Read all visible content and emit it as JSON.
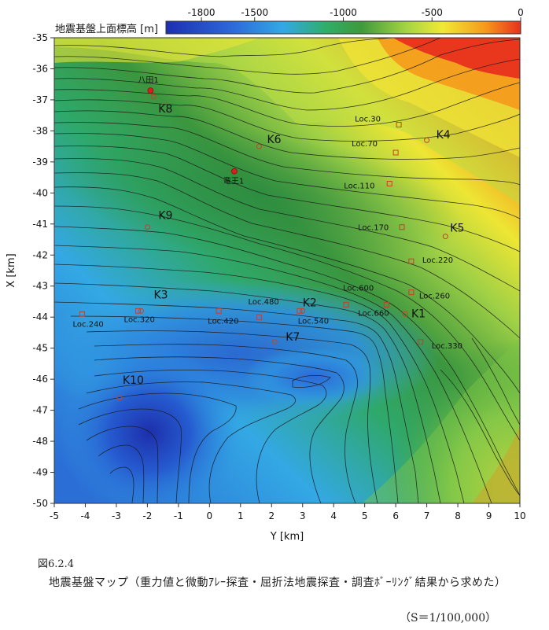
{
  "colorbar": {
    "title": "地震基盤上面標高 [m]",
    "ticks": [
      "-1800",
      "-1500",
      "-1000",
      "-500",
      "0"
    ],
    "colors": [
      "#2a3fb8",
      "#3b7fe0",
      "#3fb4e8",
      "#2faa5a",
      "#3a8a3a",
      "#b6d84a",
      "#f1ec35",
      "#f6a31c",
      "#ec3c1f"
    ]
  },
  "axes": {
    "x_label": "Y [km]",
    "y_label": "X [km]",
    "x_ticks": [
      "-5",
      "-4",
      "-3",
      "-2",
      "-1",
      "0",
      "1",
      "2",
      "3",
      "4",
      "5",
      "6",
      "7",
      "8",
      "9",
      "10"
    ],
    "y_ticks": [
      "-35",
      "-36",
      "-37",
      "-38",
      "-39",
      "-40",
      "-41",
      "-42",
      "-43",
      "-44",
      "-45",
      "-46",
      "-47",
      "-48",
      "-49",
      "-50"
    ]
  },
  "sites": [
    {
      "label": "K1",
      "y_km": 6.3,
      "x_km": -43.9,
      "kind": "array"
    },
    {
      "label": "K2",
      "y_km": 3.0,
      "x_km": -43.8,
      "kind": "array"
    },
    {
      "label": "K3",
      "y_km": -2.2,
      "x_km": -43.8,
      "kind": "array"
    },
    {
      "label": "K4",
      "y_km": 7.0,
      "x_km": -38.3,
      "kind": "array"
    },
    {
      "label": "K5",
      "y_km": 7.6,
      "x_km": -41.4,
      "kind": "array"
    },
    {
      "label": "K6",
      "y_km": 1.6,
      "x_km": -38.5,
      "kind": "array"
    },
    {
      "label": "K7",
      "y_km": 2.1,
      "x_km": -44.8,
      "kind": "array"
    },
    {
      "label": "K8",
      "y_km": -1.8,
      "x_km": -36.9,
      "kind": "array"
    },
    {
      "label": "K9",
      "y_km": -2.0,
      "x_km": -41.1,
      "kind": "array"
    },
    {
      "label": "K10",
      "y_km": -2.9,
      "x_km": -46.6,
      "kind": "array"
    },
    {
      "label": "Loc.30",
      "y_km": 6.1,
      "x_km": -37.8,
      "kind": "refraction"
    },
    {
      "label": "Loc.70",
      "y_km": 6.0,
      "x_km": -38.7,
      "kind": "refraction"
    },
    {
      "label": "Loc.110",
      "y_km": 5.8,
      "x_km": -39.7,
      "kind": "refraction"
    },
    {
      "label": "Loc.170",
      "y_km": 6.2,
      "x_km": -41.1,
      "kind": "refraction"
    },
    {
      "label": "Loc.220",
      "y_km": 6.5,
      "x_km": -42.2,
      "kind": "refraction"
    },
    {
      "label": "Loc.260",
      "y_km": 6.5,
      "x_km": -43.2,
      "kind": "refraction"
    },
    {
      "label": "Loc.330",
      "y_km": 6.8,
      "x_km": -44.8,
      "kind": "refraction"
    },
    {
      "label": "Loc.600",
      "y_km": 4.4,
      "x_km": -43.6,
      "kind": "refraction"
    },
    {
      "label": "Loc.660",
      "y_km": 5.7,
      "x_km": -43.6,
      "kind": "refraction"
    },
    {
      "label": "Loc.480",
      "y_km": 1.6,
      "x_km": -44.0,
      "kind": "refraction"
    },
    {
      "label": "Loc.540",
      "y_km": 2.9,
      "x_km": -43.8,
      "kind": "refraction"
    },
    {
      "label": "Loc.420",
      "y_km": 0.3,
      "x_km": -43.8,
      "kind": "refraction"
    },
    {
      "label": "Loc.320",
      "y_km": -2.3,
      "x_km": -43.8,
      "kind": "refraction"
    },
    {
      "label": "Loc.240",
      "y_km": -4.1,
      "x_km": -43.9,
      "kind": "refraction"
    },
    {
      "label": "八田1",
      "y_km": -1.9,
      "x_km": -36.7,
      "kind": "well"
    },
    {
      "label": "竜王1",
      "y_km": 0.8,
      "x_km": -39.3,
      "kind": "well"
    }
  ],
  "caption": {
    "number": "図6.2.4",
    "text": "地震基盤マップ（重力値と微動ｱﾚｰ探査・屈折法地震探査・調査ﾎﾞｰﾘﾝｸﾞ結果から求めた）",
    "scale": "（S＝1/100,000）"
  }
}
